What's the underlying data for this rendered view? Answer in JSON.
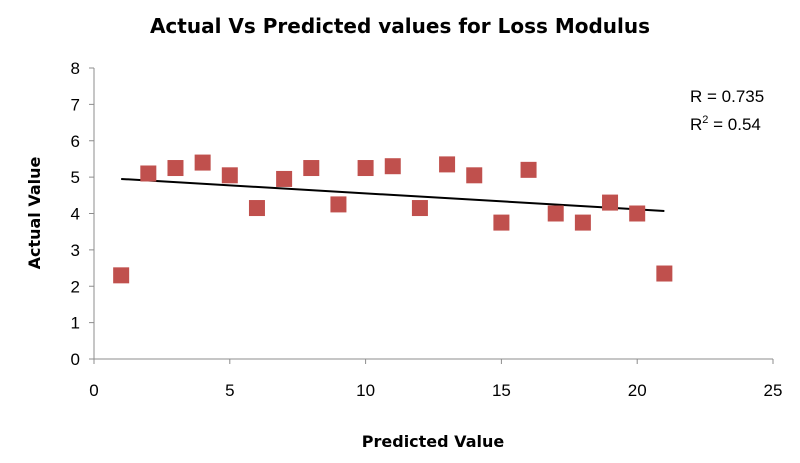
{
  "chart_data": {
    "type": "scatter",
    "title": "Actual Vs Predicted values for Loss Modulus",
    "xlabel": "Predicted Value",
    "ylabel": "Actual Value",
    "xlim": [
      0,
      25
    ],
    "ylim": [
      0,
      8
    ],
    "x_ticks": [
      "0",
      "5",
      "10",
      "15",
      "20",
      "25"
    ],
    "y_ticks": [
      "0",
      "1",
      "2",
      "3",
      "4",
      "5",
      "6",
      "7",
      "8"
    ],
    "grid": false,
    "legend": "none",
    "marker_color": "#C0504D",
    "trendline_color": "#000000",
    "series": [
      {
        "x": [
          1,
          2,
          3,
          4,
          5,
          6,
          7,
          8,
          9,
          10,
          11,
          12,
          13,
          14,
          15,
          16,
          17,
          18,
          19,
          20,
          21
        ],
        "y": [
          2.3,
          5.1,
          5.25,
          5.4,
          5.05,
          4.15,
          4.95,
          5.25,
          4.25,
          5.25,
          5.3,
          4.15,
          5.35,
          5.05,
          3.75,
          5.2,
          4.0,
          3.75,
          4.3,
          4.0,
          2.35
        ]
      }
    ],
    "trendline": {
      "x": [
        1,
        21
      ],
      "y": [
        4.95,
        4.07
      ]
    },
    "annotations": {
      "r_label": "R = 0.735",
      "r2_prefix": "R",
      "r2_sup": "2",
      "r2_suffix": " = 0.54"
    }
  }
}
